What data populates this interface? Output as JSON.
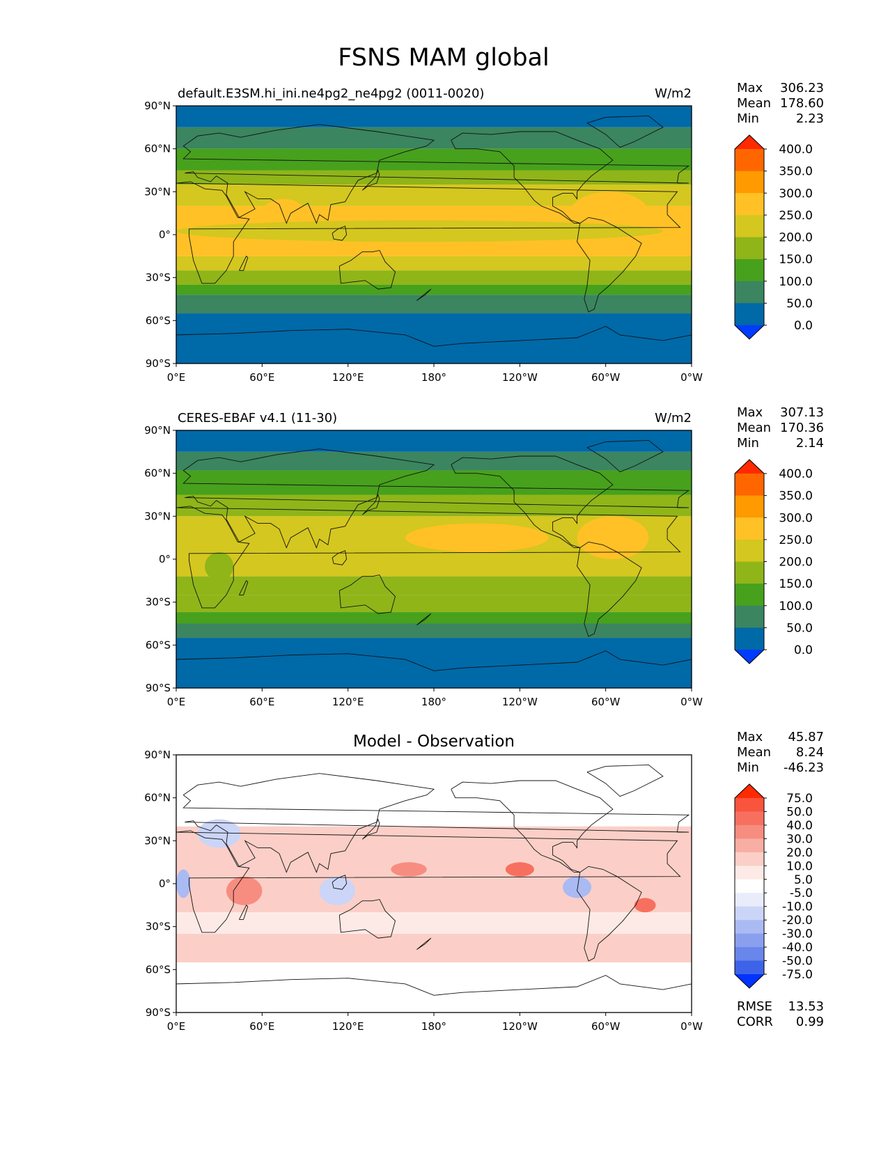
{
  "figure_title": "FSNS MAM global",
  "chart_data": [
    {
      "type": "heatmap",
      "title": "default.E3SM.hi_ini.ne4pg2_ne4pg2 (0011-0020)",
      "units": "W/m2",
      "stats": {
        "max_label": "Max",
        "max": "306.23",
        "mean_label": "Mean",
        "mean": "178.60",
        "min_label": "Min",
        "min": "2.23"
      },
      "x_ticks": [
        "0°E",
        "60°E",
        "120°E",
        "180°",
        "120°W",
        "60°W",
        "0°W"
      ],
      "y_ticks": [
        "90°N",
        "60°N",
        "30°N",
        "0°",
        "30°S",
        "60°S",
        "90°S"
      ],
      "colorbar": {
        "levels": [
          "400.0",
          "350.0",
          "300.0",
          "250.0",
          "200.0",
          "150.0",
          "100.0",
          "50.0",
          "0.0"
        ],
        "colors": [
          "#ff2a00",
          "#ff6600",
          "#ff9a00",
          "#ffc125",
          "#d4c71f",
          "#8fb519",
          "#47a11c",
          "#3b8560",
          "#0069a8",
          "#003cff"
        ]
      },
      "lat_bands": [
        {
          "from": 90,
          "to": 75,
          "value": 25
        },
        {
          "from": 75,
          "to": 60,
          "value": 75
        },
        {
          "from": 60,
          "to": 45,
          "value": 125
        },
        {
          "from": 45,
          "to": 35,
          "value": 175
        },
        {
          "from": 35,
          "to": 20,
          "value": 225
        },
        {
          "from": 20,
          "to": -15,
          "value": 260
        },
        {
          "from": -15,
          "to": -25,
          "value": 225
        },
        {
          "from": -25,
          "to": -35,
          "value": 175
        },
        {
          "from": -35,
          "to": -42,
          "value": 125
        },
        {
          "from": -42,
          "to": -55,
          "value": 75
        },
        {
          "from": -55,
          "to": -90,
          "value": 25
        }
      ],
      "features": [
        {
          "lon0": 60,
          "lon1": 90,
          "lat0": 25,
          "lat1": 5,
          "value": 260
        },
        {
          "lon0": -85,
          "lon1": -30,
          "lat0": 30,
          "lat1": 0,
          "value": 270
        },
        {
          "lon0": -20,
          "lon1": 0,
          "lat0": 10,
          "lat1": -5,
          "value": 210
        }
      ]
    },
    {
      "type": "heatmap",
      "title": "CERES-EBAF v4.1 (11-30)",
      "units": "W/m2",
      "stats": {
        "max_label": "Max",
        "max": "307.13",
        "mean_label": "Mean",
        "mean": "170.36",
        "min_label": "Min",
        "min": "2.14"
      },
      "x_ticks": [
        "0°E",
        "60°E",
        "120°E",
        "180°",
        "120°W",
        "60°W",
        "0°W"
      ],
      "y_ticks": [
        "90°N",
        "60°N",
        "30°N",
        "0°",
        "30°S",
        "60°S",
        "90°S"
      ],
      "colorbar": {
        "levels": [
          "400.0",
          "350.0",
          "300.0",
          "250.0",
          "200.0",
          "150.0",
          "100.0",
          "50.0",
          "0.0"
        ],
        "colors": [
          "#ff2a00",
          "#ff6600",
          "#ff9a00",
          "#ffc125",
          "#d4c71f",
          "#8fb519",
          "#47a11c",
          "#3b8560",
          "#0069a8",
          "#003cff"
        ]
      },
      "lat_bands": [
        {
          "from": 90,
          "to": 75,
          "value": 25
        },
        {
          "from": 75,
          "to": 62,
          "value": 75
        },
        {
          "from": 62,
          "to": 45,
          "value": 125
        },
        {
          "from": 45,
          "to": 30,
          "value": 175
        },
        {
          "from": 30,
          "to": -12,
          "value": 225
        },
        {
          "from": -12,
          "to": -25,
          "value": 175
        },
        {
          "from": -25,
          "to": -37,
          "value": 175
        },
        {
          "from": -37,
          "to": -45,
          "value": 125
        },
        {
          "from": -45,
          "to": -55,
          "value": 75
        },
        {
          "from": -55,
          "to": -90,
          "value": 25
        }
      ],
      "features": [
        {
          "lon0": 160,
          "lon1": 260,
          "lat0": 25,
          "lat1": 5,
          "value": 260
        },
        {
          "lon0": -80,
          "lon1": -30,
          "lat0": 30,
          "lat1": 0,
          "value": 265
        },
        {
          "lon0": 20,
          "lon1": 40,
          "lat0": 5,
          "lat1": -15,
          "value": 175
        }
      ]
    },
    {
      "type": "heatmap",
      "title": "Model - Observation",
      "units": "",
      "stats": {
        "max_label": "Max",
        "max": "45.87",
        "mean_label": "Mean",
        "mean": "8.24",
        "min_label": "Min",
        "min": "-46.23"
      },
      "extra_stats": {
        "rmse_label": "RMSE",
        "rmse": "13.53",
        "corr_label": "CORR",
        "corr": "0.99"
      },
      "x_ticks": [
        "0°E",
        "60°E",
        "120°E",
        "180°",
        "120°W",
        "60°W",
        "0°W"
      ],
      "y_ticks": [
        "90°N",
        "60°N",
        "30°N",
        "0°",
        "30°S",
        "60°S",
        "90°S"
      ],
      "colorbar": {
        "levels": [
          "75.0",
          "50.0",
          "40.0",
          "30.0",
          "20.0",
          "10.0",
          "5.0",
          "-5.0",
          "-10.0",
          "-20.0",
          "-30.0",
          "-40.0",
          "-50.0",
          "-75.0"
        ],
        "colors": [
          "#ff2a00",
          "#f9543d",
          "#f7705f",
          "#f78d80",
          "#f9aea3",
          "#fbcfc7",
          "#fdeae6",
          "#ffffff",
          "#e8ecfb",
          "#cbd5f7",
          "#aabaf3",
          "#8aa0ef",
          "#6986eb",
          "#3d64e8",
          "#0033ff"
        ]
      },
      "lat_bands": [
        {
          "from": 90,
          "to": 40,
          "value": 0
        },
        {
          "from": 40,
          "to": -20,
          "value": 12
        },
        {
          "from": -20,
          "to": -35,
          "value": 7
        },
        {
          "from": -35,
          "to": -55,
          "value": 15
        },
        {
          "from": -55,
          "to": -90,
          "value": 0
        }
      ],
      "features": [
        {
          "lon0": 15,
          "lon1": 45,
          "lat0": 45,
          "lat1": 25,
          "value": -15
        },
        {
          "lon0": 35,
          "lon1": 60,
          "lat0": 5,
          "lat1": -15,
          "value": 35
        },
        {
          "lon0": -90,
          "lon1": -70,
          "lat0": 5,
          "lat1": -10,
          "value": -25
        },
        {
          "lon0": -40,
          "lon1": -25,
          "lat0": -10,
          "lat1": -20,
          "value": 40
        },
        {
          "lon0": -130,
          "lon1": -110,
          "lat0": 15,
          "lat1": 5,
          "value": 40
        },
        {
          "lon0": 100,
          "lon1": 125,
          "lat0": 5,
          "lat1": -15,
          "value": -15
        },
        {
          "lon0": 0,
          "lon1": 10,
          "lat0": 10,
          "lat1": -10,
          "value": -25
        },
        {
          "lon0": 150,
          "lon1": 175,
          "lat0": 15,
          "lat1": 5,
          "value": 35
        }
      ]
    }
  ]
}
